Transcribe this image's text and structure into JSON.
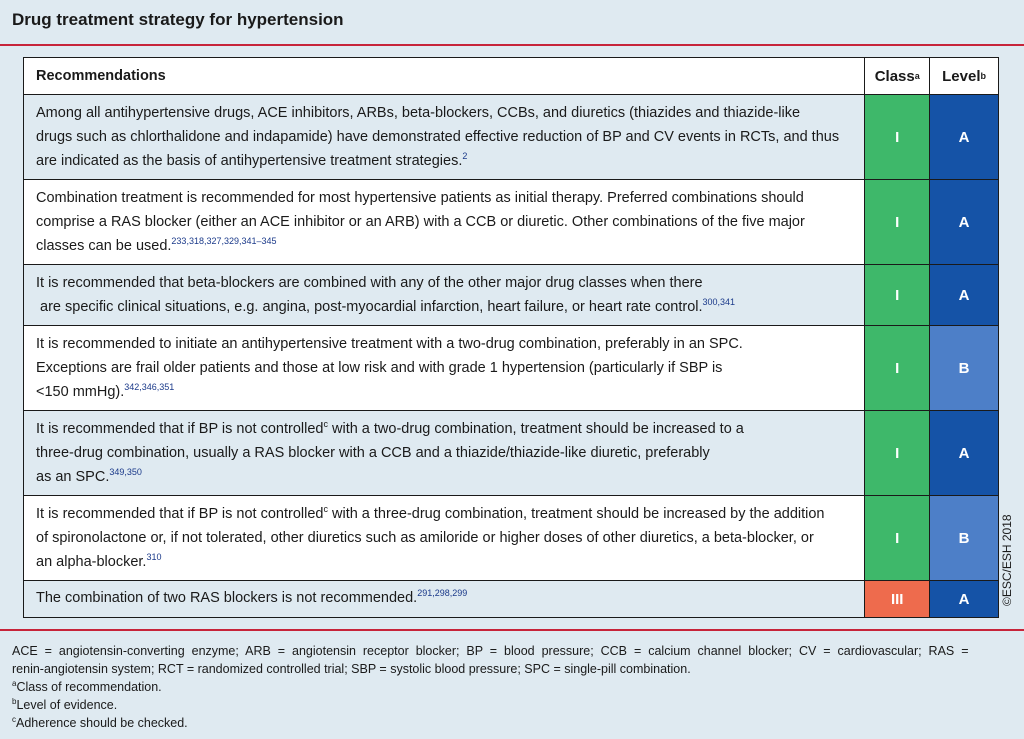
{
  "title": "Drug treatment strategy for hypertension",
  "header": {
    "recommendations": "Recommendations",
    "class": "Class",
    "class_sup": "a",
    "level": "Level",
    "level_sup": "b"
  },
  "rows": [
    {
      "lines": [
        "Among all antihypertensive drugs, ACE inhibitors, ARBs, beta-blockers, CCBs, and diuretics (thiazides and thiazide-like",
        "drugs such as chlorthalidone and indapamide) have demonstrated effective reduction of BP and CV events in RCTs, and thus",
        "are indicated as the basis of antihypertensive treatment strategies."
      ],
      "refs": "2",
      "class": "I",
      "level": "A"
    },
    {
      "lines": [
        "Combination treatment is recommended for most hypertensive patients as initial therapy. Preferred combinations should",
        "comprise a RAS blocker (either an ACE inhibitor or an ARB) with a CCB or diuretic. Other combinations of the five major",
        "classes can be used."
      ],
      "refs": "233,318,327,329,341–345",
      "class": "I",
      "level": "A"
    },
    {
      "lines": [
        "It is recommended that beta-blockers are combined with any of the other major drug classes when there",
        " are specific clinical situations, e.g. angina, post-myocardial infarction, heart failure, or heart rate control."
      ],
      "refs": "300,341",
      "class": "I",
      "level": "A"
    },
    {
      "lines": [
        "It is recommended to initiate an antihypertensive treatment with a two-drug combination, preferably in an SPC.",
        "Exceptions are frail older patients and those at low risk and with grade 1 hypertension (particularly if SBP is",
        "<150 mmHg)."
      ],
      "refs": "342,346,351",
      "class": "I",
      "level": "B"
    },
    {
      "line1_pre": "It is recommended that if BP is not controlled",
      "line1_sup": "c",
      "line1_post": " with a two-drug combination, treatment should be increased to a",
      "lines": [
        "three-drug combination, usually a RAS blocker with a CCB and a thiazide/thiazide-like diuretic, preferably",
        "as an SPC."
      ],
      "refs": "349,350",
      "class": "I",
      "level": "A"
    },
    {
      "line1_pre": "It is recommended that if BP is not controlled",
      "line1_sup": "c",
      "line1_post": " with a three-drug combination, treatment should be increased by the addition",
      "lines": [
        "of spironolactone or, if not tolerated, other diuretics such as amiloride or higher doses of other diuretics, a beta-blocker, or",
        "an alpha-blocker."
      ],
      "refs": "310",
      "class": "I",
      "level": "B"
    },
    {
      "lines": [
        "The combination of two RAS blockers is not recommended."
      ],
      "refs": "291,298,299",
      "class": "III",
      "level": "A"
    }
  ],
  "abbreviations": [
    "ACE  =  angiotensin-converting  enzyme;  ARB  =  angiotensin  receptor  blocker;  BP  =  blood  pressure;  CCB  =  calcium  channel  blocker;  CV  =  cardiovascular;  RAS  =",
    "renin-angiotensin system; RCT = randomized controlled trial; SBP = systolic blood pressure; SPC = single-pill combination."
  ],
  "footnotes": [
    {
      "mark": "a",
      "text": "Class of recommendation."
    },
    {
      "mark": "b",
      "text": "Level of evidence."
    },
    {
      "mark": "c",
      "text": "Adherence should be checked."
    }
  ],
  "copyright": "©ESC/ESH 2018",
  "colors": {
    "class_I": "#3eb86a",
    "class_III": "#ee6b4d",
    "level_A": "#1553a7",
    "level_B": "#4d7fc8",
    "rule": "#c7243a",
    "shade": "#dfeaf1"
  }
}
